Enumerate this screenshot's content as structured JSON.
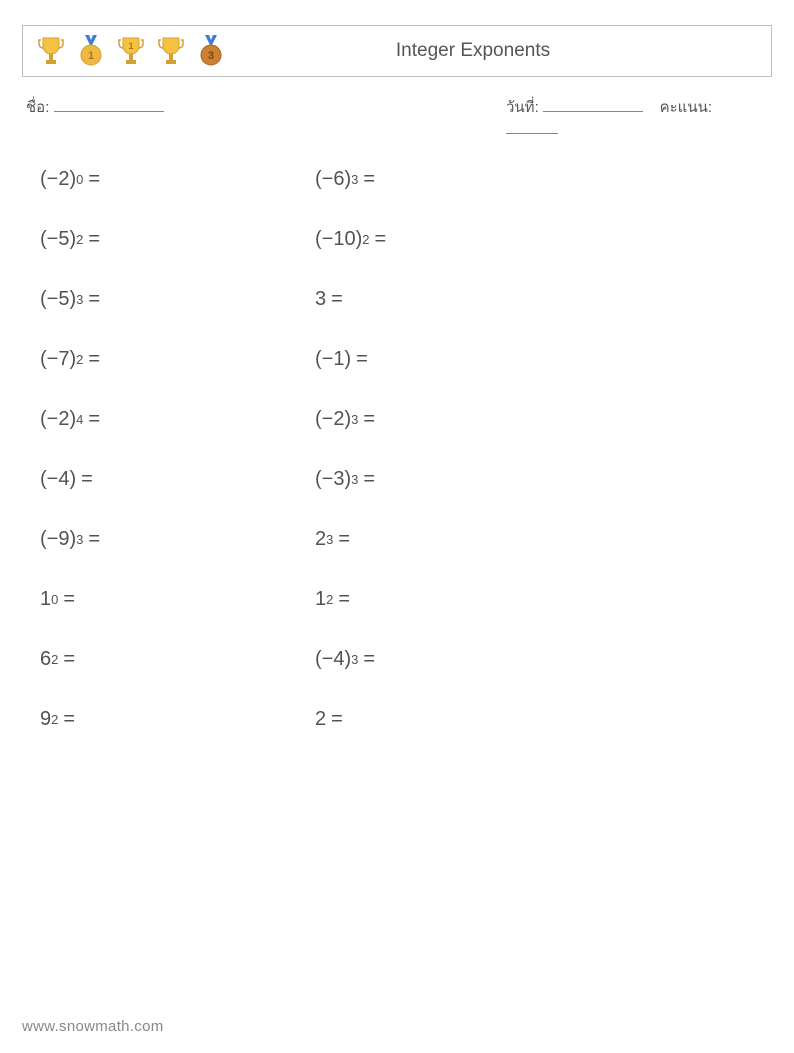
{
  "header": {
    "title": "Integer Exponents",
    "icons": [
      "trophy",
      "medal-1",
      "trophy-1",
      "trophy",
      "medal-3"
    ]
  },
  "info": {
    "name_label": "ชื่อ:",
    "date_label": "วันที่:",
    "score_label": "คะแนน:",
    "name_underline_width": 110,
    "date_underline_width": 100,
    "score_underline_width": 52
  },
  "problems": {
    "col1": [
      {
        "base": "(−2)",
        "exp": "0"
      },
      {
        "base": "(−5)",
        "exp": "2"
      },
      {
        "base": "(−5)",
        "exp": "3"
      },
      {
        "base": "(−7)",
        "exp": "2"
      },
      {
        "base": "(−2)",
        "exp": "4"
      },
      {
        "base": "(−4)",
        "exp": ""
      },
      {
        "base": "(−9)",
        "exp": "3"
      },
      {
        "base": "1",
        "exp": "0"
      },
      {
        "base": "6",
        "exp": "2"
      },
      {
        "base": "9",
        "exp": "2"
      }
    ],
    "col2": [
      {
        "base": "(−6)",
        "exp": "3"
      },
      {
        "base": "(−10)",
        "exp": "2"
      },
      {
        "base": "3",
        "exp": ""
      },
      {
        "base": "(−1)",
        "exp": ""
      },
      {
        "base": "(−2)",
        "exp": "3"
      },
      {
        "base": "(−3)",
        "exp": "3"
      },
      {
        "base": "2",
        "exp": "3"
      },
      {
        "base": "1",
        "exp": "2"
      },
      {
        "base": "(−4)",
        "exp": "3"
      },
      {
        "base": "2",
        "exp": ""
      }
    ]
  },
  "footer": {
    "url": "www.snowmath.com"
  },
  "colors": {
    "text": "#525252",
    "border": "#bfbfbf",
    "footer": "#888888",
    "trophy_gold": "#f5c242",
    "trophy_base": "#d4a030",
    "medal_ribbon": "#3b7dd8",
    "medal_gold": "#f0b840",
    "medal_bronze": "#cd7f32"
  }
}
